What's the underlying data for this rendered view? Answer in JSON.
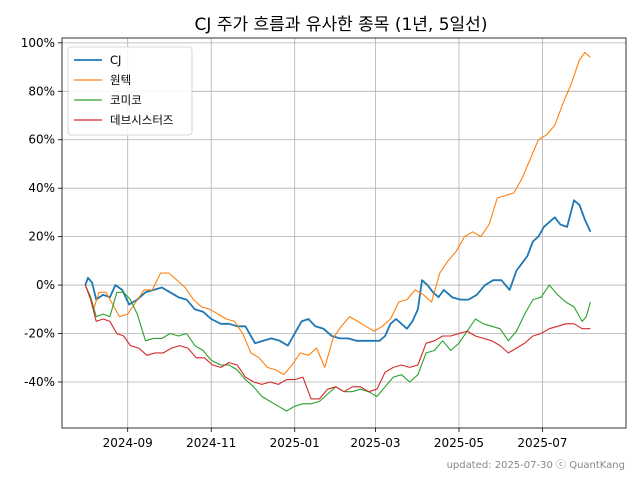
{
  "chart_data": {
    "type": "line",
    "title": "CJ 주가 흐름과 유사한 종목 (1년, 5일선)",
    "xlabel": "",
    "ylabel": "",
    "x_tick_labels": [
      "2024-09",
      "2024-11",
      "2025-01",
      "2025-03",
      "2025-05",
      "2025-07"
    ],
    "x_tick_dates": [
      "2024-09-01",
      "2024-11-01",
      "2025-01-01",
      "2025-03-01",
      "2025-05-01",
      "2025-07-01"
    ],
    "x_range": [
      "2024-07-15",
      "2025-08-31"
    ],
    "y_tick_labels": [
      "-40%",
      "-20%",
      "0%",
      "20%",
      "40%",
      "60%",
      "80%",
      "100%"
    ],
    "y_ticks": [
      -40,
      -20,
      0,
      20,
      40,
      60,
      80,
      100
    ],
    "ylim": [
      -59,
      102
    ],
    "grid": true,
    "legend_position": "top-left",
    "series": [
      {
        "name": "CJ",
        "color": "#1f77b4",
        "points": [
          [
            "2024-08-01",
            0
          ],
          [
            "2024-08-03",
            3
          ],
          [
            "2024-08-06",
            1
          ],
          [
            "2024-08-09",
            -6
          ],
          [
            "2024-08-14",
            -4
          ],
          [
            "2024-08-19",
            -5
          ],
          [
            "2024-08-23",
            0
          ],
          [
            "2024-08-28",
            -2
          ],
          [
            "2024-09-02",
            -8
          ],
          [
            "2024-09-08",
            -6
          ],
          [
            "2024-09-14",
            -3
          ],
          [
            "2024-09-20",
            -2
          ],
          [
            "2024-09-26",
            -1
          ],
          [
            "2024-10-02",
            -3
          ],
          [
            "2024-10-08",
            -5
          ],
          [
            "2024-10-14",
            -6
          ],
          [
            "2024-10-20",
            -10
          ],
          [
            "2024-10-26",
            -11
          ],
          [
            "2024-11-01",
            -14
          ],
          [
            "2024-11-08",
            -16
          ],
          [
            "2024-11-14",
            -16
          ],
          [
            "2024-11-20",
            -17
          ],
          [
            "2024-11-26",
            -17
          ],
          [
            "2024-12-03",
            -24
          ],
          [
            "2024-12-09",
            -23
          ],
          [
            "2024-12-15",
            -22
          ],
          [
            "2024-12-21",
            -23
          ],
          [
            "2024-12-27",
            -25
          ],
          [
            "2025-01-02",
            -19
          ],
          [
            "2025-01-06",
            -15
          ],
          [
            "2025-01-11",
            -14
          ],
          [
            "2025-01-16",
            -17
          ],
          [
            "2025-01-22",
            -18
          ],
          [
            "2025-01-28",
            -21
          ],
          [
            "2025-02-03",
            -22
          ],
          [
            "2025-02-09",
            -22
          ],
          [
            "2025-02-15",
            -23
          ],
          [
            "2025-02-21",
            -23
          ],
          [
            "2025-02-27",
            -23
          ],
          [
            "2025-03-04",
            -23
          ],
          [
            "2025-03-08",
            -21
          ],
          [
            "2025-03-12",
            -16
          ],
          [
            "2025-03-16",
            -14
          ],
          [
            "2025-03-20",
            -16
          ],
          [
            "2025-03-24",
            -18
          ],
          [
            "2025-03-28",
            -15
          ],
          [
            "2025-04-01",
            -10
          ],
          [
            "2025-04-04",
            2
          ],
          [
            "2025-04-08",
            0
          ],
          [
            "2025-04-12",
            -3
          ],
          [
            "2025-04-16",
            -5
          ],
          [
            "2025-04-20",
            -2
          ],
          [
            "2025-04-26",
            -5
          ],
          [
            "2025-05-02",
            -6
          ],
          [
            "2025-05-08",
            -6
          ],
          [
            "2025-05-14",
            -4
          ],
          [
            "2025-05-20",
            0
          ],
          [
            "2025-05-26",
            2
          ],
          [
            "2025-06-01",
            2
          ],
          [
            "2025-06-07",
            -2
          ],
          [
            "2025-06-12",
            6
          ],
          [
            "2025-06-16",
            9
          ],
          [
            "2025-06-20",
            12
          ],
          [
            "2025-06-24",
            18
          ],
          [
            "2025-06-28",
            20
          ],
          [
            "2025-07-02",
            24
          ],
          [
            "2025-07-06",
            26
          ],
          [
            "2025-07-10",
            28
          ],
          [
            "2025-07-14",
            25
          ],
          [
            "2025-07-19",
            24
          ],
          [
            "2025-07-24",
            35
          ],
          [
            "2025-07-28",
            33
          ],
          [
            "2025-08-01",
            27
          ],
          [
            "2025-08-05",
            22
          ]
        ]
      },
      {
        "name": "원텍",
        "color": "#ff7f0e",
        "points": [
          [
            "2024-08-01",
            0
          ],
          [
            "2024-08-04",
            -4
          ],
          [
            "2024-08-07",
            -10
          ],
          [
            "2024-08-11",
            -3
          ],
          [
            "2024-08-16",
            -3
          ],
          [
            "2024-08-21",
            -8
          ],
          [
            "2024-08-26",
            -13
          ],
          [
            "2024-09-01",
            -12
          ],
          [
            "2024-09-07",
            -7
          ],
          [
            "2024-09-13",
            -2
          ],
          [
            "2024-09-19",
            -2
          ],
          [
            "2024-09-25",
            5
          ],
          [
            "2024-10-01",
            5
          ],
          [
            "2024-10-07",
            2
          ],
          [
            "2024-10-13",
            -1
          ],
          [
            "2024-10-19",
            -6
          ],
          [
            "2024-10-25",
            -9
          ],
          [
            "2024-10-31",
            -10
          ],
          [
            "2024-11-06",
            -12
          ],
          [
            "2024-11-12",
            -14
          ],
          [
            "2024-11-18",
            -15
          ],
          [
            "2024-11-24",
            -20
          ],
          [
            "2024-11-30",
            -28
          ],
          [
            "2024-12-06",
            -30
          ],
          [
            "2024-12-12",
            -34
          ],
          [
            "2024-12-18",
            -35
          ],
          [
            "2024-12-24",
            -37
          ],
          [
            "2024-12-30",
            -33
          ],
          [
            "2025-01-05",
            -28
          ],
          [
            "2025-01-11",
            -29
          ],
          [
            "2025-01-17",
            -26
          ],
          [
            "2025-01-23",
            -34
          ],
          [
            "2025-01-29",
            -22
          ],
          [
            "2025-02-04",
            -17
          ],
          [
            "2025-02-10",
            -13
          ],
          [
            "2025-02-16",
            -15
          ],
          [
            "2025-02-22",
            -17
          ],
          [
            "2025-02-28",
            -19
          ],
          [
            "2025-03-06",
            -17
          ],
          [
            "2025-03-12",
            -14
          ],
          [
            "2025-03-18",
            -7
          ],
          [
            "2025-03-24",
            -6
          ],
          [
            "2025-03-30",
            -2
          ],
          [
            "2025-04-05",
            -4
          ],
          [
            "2025-04-11",
            -7
          ],
          [
            "2025-04-17",
            5
          ],
          [
            "2025-04-23",
            10
          ],
          [
            "2025-04-29",
            14
          ],
          [
            "2025-05-05",
            20
          ],
          [
            "2025-05-11",
            22
          ],
          [
            "2025-05-17",
            20
          ],
          [
            "2025-05-23",
            25
          ],
          [
            "2025-05-29",
            36
          ],
          [
            "2025-06-04",
            37
          ],
          [
            "2025-06-10",
            38
          ],
          [
            "2025-06-16",
            44
          ],
          [
            "2025-06-22",
            52
          ],
          [
            "2025-06-28",
            60
          ],
          [
            "2025-07-04",
            62
          ],
          [
            "2025-07-10",
            66
          ],
          [
            "2025-07-16",
            75
          ],
          [
            "2025-07-22",
            83
          ],
          [
            "2025-07-28",
            93
          ],
          [
            "2025-08-01",
            96
          ],
          [
            "2025-08-05",
            94
          ]
        ]
      },
      {
        "name": "코미코",
        "color": "#2ca02c",
        "points": [
          [
            "2024-08-01",
            0
          ],
          [
            "2024-08-05",
            -5
          ],
          [
            "2024-08-09",
            -13
          ],
          [
            "2024-08-14",
            -12
          ],
          [
            "2024-08-19",
            -13
          ],
          [
            "2024-08-24",
            -3
          ],
          [
            "2024-08-29",
            -3
          ],
          [
            "2024-09-03",
            -6
          ],
          [
            "2024-09-08",
            -12
          ],
          [
            "2024-09-14",
            -23
          ],
          [
            "2024-09-20",
            -22
          ],
          [
            "2024-09-26",
            -22
          ],
          [
            "2024-10-02",
            -20
          ],
          [
            "2024-10-08",
            -21
          ],
          [
            "2024-10-14",
            -20
          ],
          [
            "2024-10-20",
            -25
          ],
          [
            "2024-10-26",
            -27
          ],
          [
            "2024-11-01",
            -31
          ],
          [
            "2024-11-08",
            -33
          ],
          [
            "2024-11-14",
            -33
          ],
          [
            "2024-11-20",
            -35
          ],
          [
            "2024-11-26",
            -39
          ],
          [
            "2024-12-02",
            -42
          ],
          [
            "2024-12-08",
            -46
          ],
          [
            "2024-12-14",
            -48
          ],
          [
            "2024-12-20",
            -50
          ],
          [
            "2024-12-26",
            -52
          ],
          [
            "2025-01-01",
            -50
          ],
          [
            "2025-01-07",
            -49
          ],
          [
            "2025-01-13",
            -49
          ],
          [
            "2025-01-19",
            -48
          ],
          [
            "2025-01-25",
            -45
          ],
          [
            "2025-01-31",
            -42
          ],
          [
            "2025-02-06",
            -44
          ],
          [
            "2025-02-12",
            -44
          ],
          [
            "2025-02-18",
            -43
          ],
          [
            "2025-02-24",
            -44
          ],
          [
            "2025-03-02",
            -46
          ],
          [
            "2025-03-08",
            -42
          ],
          [
            "2025-03-14",
            -38
          ],
          [
            "2025-03-20",
            -37
          ],
          [
            "2025-03-26",
            -40
          ],
          [
            "2025-04-01",
            -37
          ],
          [
            "2025-04-07",
            -28
          ],
          [
            "2025-04-13",
            -27
          ],
          [
            "2025-04-19",
            -23
          ],
          [
            "2025-04-25",
            -27
          ],
          [
            "2025-05-01",
            -24
          ],
          [
            "2025-05-07",
            -19
          ],
          [
            "2025-05-13",
            -14
          ],
          [
            "2025-05-19",
            -16
          ],
          [
            "2025-05-25",
            -17
          ],
          [
            "2025-05-31",
            -18
          ],
          [
            "2025-06-06",
            -23
          ],
          [
            "2025-06-12",
            -19
          ],
          [
            "2025-06-18",
            -12
          ],
          [
            "2025-06-24",
            -6
          ],
          [
            "2025-06-30",
            -5
          ],
          [
            "2025-07-06",
            0
          ],
          [
            "2025-07-12",
            -4
          ],
          [
            "2025-07-18",
            -7
          ],
          [
            "2025-07-24",
            -9
          ],
          [
            "2025-07-30",
            -15
          ],
          [
            "2025-08-02",
            -13
          ],
          [
            "2025-08-05",
            -7
          ]
        ]
      },
      {
        "name": "데브시스터즈",
        "color": "#d62728",
        "points": [
          [
            "2024-08-01",
            0
          ],
          [
            "2024-08-05",
            -6
          ],
          [
            "2024-08-09",
            -15
          ],
          [
            "2024-08-14",
            -14
          ],
          [
            "2024-08-19",
            -15
          ],
          [
            "2024-08-24",
            -20
          ],
          [
            "2024-08-29",
            -21
          ],
          [
            "2024-09-03",
            -25
          ],
          [
            "2024-09-09",
            -26
          ],
          [
            "2024-09-15",
            -29
          ],
          [
            "2024-09-21",
            -28
          ],
          [
            "2024-09-27",
            -28
          ],
          [
            "2024-10-03",
            -26
          ],
          [
            "2024-10-09",
            -25
          ],
          [
            "2024-10-15",
            -26
          ],
          [
            "2024-10-21",
            -30
          ],
          [
            "2024-10-27",
            -30
          ],
          [
            "2024-11-02",
            -33
          ],
          [
            "2024-11-08",
            -34
          ],
          [
            "2024-11-14",
            -32
          ],
          [
            "2024-11-20",
            -33
          ],
          [
            "2024-11-26",
            -38
          ],
          [
            "2024-12-02",
            -40
          ],
          [
            "2024-12-08",
            -41
          ],
          [
            "2024-12-14",
            -40
          ],
          [
            "2024-12-20",
            -41
          ],
          [
            "2024-12-26",
            -39
          ],
          [
            "2025-01-01",
            -39
          ],
          [
            "2025-01-07",
            -38
          ],
          [
            "2025-01-13",
            -47
          ],
          [
            "2025-01-19",
            -47
          ],
          [
            "2025-01-25",
            -43
          ],
          [
            "2025-01-31",
            -42
          ],
          [
            "2025-02-06",
            -44
          ],
          [
            "2025-02-12",
            -42
          ],
          [
            "2025-02-18",
            -42
          ],
          [
            "2025-02-24",
            -44
          ],
          [
            "2025-03-02",
            -43
          ],
          [
            "2025-03-08",
            -36
          ],
          [
            "2025-03-14",
            -34
          ],
          [
            "2025-03-20",
            -33
          ],
          [
            "2025-03-26",
            -34
          ],
          [
            "2025-04-01",
            -33
          ],
          [
            "2025-04-07",
            -24
          ],
          [
            "2025-04-13",
            -23
          ],
          [
            "2025-04-19",
            -21
          ],
          [
            "2025-04-25",
            -21
          ],
          [
            "2025-05-01",
            -20
          ],
          [
            "2025-05-07",
            -19
          ],
          [
            "2025-05-13",
            -21
          ],
          [
            "2025-05-19",
            -22
          ],
          [
            "2025-05-25",
            -23
          ],
          [
            "2025-05-31",
            -25
          ],
          [
            "2025-06-06",
            -28
          ],
          [
            "2025-06-12",
            -26
          ],
          [
            "2025-06-18",
            -24
          ],
          [
            "2025-06-24",
            -21
          ],
          [
            "2025-06-30",
            -20
          ],
          [
            "2025-07-06",
            -18
          ],
          [
            "2025-07-12",
            -17
          ],
          [
            "2025-07-18",
            -16
          ],
          [
            "2025-07-24",
            -16
          ],
          [
            "2025-07-30",
            -18
          ],
          [
            "2025-08-05",
            -18
          ]
        ]
      }
    ]
  },
  "footer": {
    "updated": "updated: 2025-07-30 ⓒ QuantKang"
  }
}
